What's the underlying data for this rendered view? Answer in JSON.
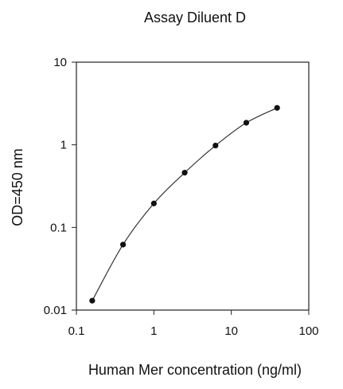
{
  "chart_data": {
    "type": "scatter",
    "title": "Assay Diluent D",
    "xlabel": "Human Mer concentration (ng/ml)",
    "ylabel": "OD=450 nm",
    "x_scale": "log",
    "y_scale": "log",
    "xlim": [
      0.1,
      100
    ],
    "ylim": [
      0.01,
      10
    ],
    "x_ticks": [
      0.1,
      1,
      10,
      100
    ],
    "x_tick_labels": [
      "0.1",
      "1",
      "10",
      "100"
    ],
    "y_ticks": [
      0.01,
      0.1,
      1,
      10
    ],
    "y_tick_labels": [
      "0.01",
      "0.1",
      "1",
      "10"
    ],
    "grid": false,
    "legend": "none",
    "series": [
      {
        "x": [
          0.16,
          0.4,
          1.0,
          2.5,
          6.25,
          15.6,
          39
        ],
        "y": [
          0.013,
          0.062,
          0.195,
          0.46,
          0.98,
          1.85,
          2.8
        ],
        "line": true,
        "marker": "circle"
      }
    ],
    "colors": {
      "line": "#333333",
      "marker": "#111111",
      "frame": "#222222"
    }
  }
}
